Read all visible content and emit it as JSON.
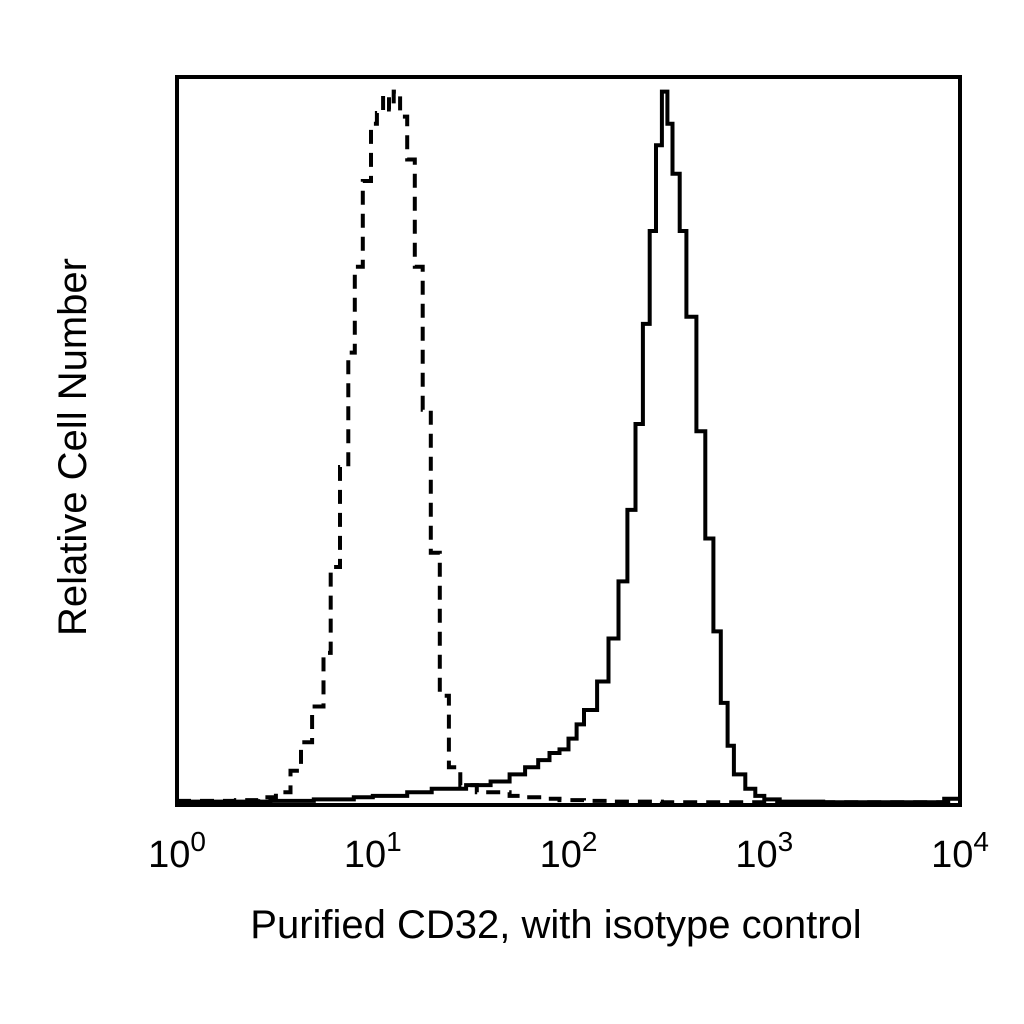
{
  "chart_data": {
    "type": "line",
    "xlabel": "Purified CD32, with isotype control",
    "ylabel": "Relative Cell Number",
    "x_scale": "log",
    "xlim": [
      1,
      10000
    ],
    "ylim": [
      0,
      100
    ],
    "grid": false,
    "x_ticks": [
      {
        "base": "10",
        "exp": "0",
        "value": 1
      },
      {
        "base": "10",
        "exp": "1",
        "value": 10
      },
      {
        "base": "10",
        "exp": "2",
        "value": 100
      },
      {
        "base": "10",
        "exp": "3",
        "value": 1000
      },
      {
        "base": "10",
        "exp": "4",
        "value": 10000
      }
    ],
    "series": [
      {
        "style": "dashed",
        "color": "#000000",
        "x": [
          1.0,
          2.0,
          2.6,
          3.2,
          3.8,
          4.3,
          4.9,
          5.6,
          6.1,
          6.8,
          7.5,
          8.1,
          8.9,
          9.8,
          10.5,
          11.3,
          12.1,
          12.8,
          13.8,
          15.0,
          16.4,
          18.0,
          19.8,
          22.0,
          24.5,
          28.0,
          34.0,
          40.0,
          50.0,
          60.0,
          75.0,
          90.0,
          120.0,
          160.0,
          200.0,
          300.0,
          500.0,
          1000.0,
          10000.0
        ],
        "y": [
          0.3,
          0.4,
          0.8,
          1.5,
          4.5,
          8.5,
          13.5,
          21.0,
          33.0,
          47.0,
          63.0,
          75.0,
          87.0,
          95.0,
          96.5,
          99.0,
          97.0,
          99.5,
          96.0,
          90.0,
          75.0,
          55.0,
          35.0,
          15.0,
          5.0,
          2.5,
          1.5,
          1.5,
          1.0,
          0.8,
          0.6,
          0.4,
          0.3,
          0.2,
          0.2,
          0.1,
          0.1,
          0.1,
          0.1
        ]
      },
      {
        "style": "solid",
        "color": "#000000",
        "x": [
          1.0,
          2.0,
          3.0,
          5.0,
          8.0,
          10.0,
          15.0,
          20.0,
          30.0,
          40.0,
          50.0,
          60.0,
          70.0,
          80.0,
          90.0,
          100.0,
          110.0,
          120.0,
          140.0,
          160.0,
          180.0,
          200.0,
          220.0,
          240.0,
          260.0,
          280.0,
          300.0,
          320.0,
          340.0,
          370.0,
          400.0,
          450.0,
          500.0,
          550.0,
          600.0,
          650.0,
          700.0,
          800.0,
          900.0,
          1000.0,
          1200.0,
          2000.0,
          5000.0,
          8300.0,
          10000.0
        ],
        "y": [
          0.2,
          0.2,
          0.3,
          0.5,
          0.8,
          1.0,
          1.5,
          2.0,
          2.5,
          3.0,
          4.0,
          5.0,
          6.0,
          7.0,
          7.5,
          9.0,
          11.0,
          13.0,
          17.0,
          23.0,
          31.0,
          41.0,
          53.0,
          67.0,
          80.0,
          92.0,
          99.5,
          95.0,
          88.0,
          80.0,
          68.0,
          52.0,
          37.0,
          24.0,
          14.0,
          8.0,
          4.0,
          2.0,
          1.0,
          0.5,
          0.2,
          0.1,
          0.1,
          0.6,
          0.1
        ]
      }
    ]
  }
}
